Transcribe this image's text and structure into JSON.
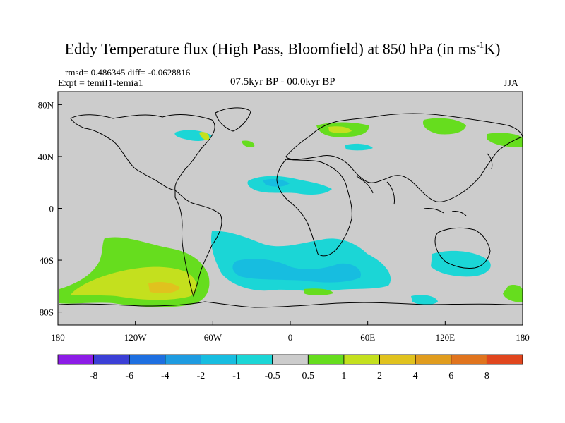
{
  "title": {
    "main": "Eddy Temperature flux (High Pass, Bloomfield) at 850 hPa (in ms",
    "sup": "-1",
    "suffix": "K)"
  },
  "stats": {
    "rmsd_diff": "rmsd= 0.486345 diff= -0.0628816",
    "expt": "Expt = temiI1-temia1"
  },
  "period": "07.5kyr BP - 00.0kyr BP",
  "season": "JJA",
  "axes": {
    "x_ticks": [
      "180",
      "120W",
      "60W",
      "0",
      "60E",
      "120E",
      "180"
    ],
    "y_ticks": [
      "80N",
      "40N",
      "0",
      "40S",
      "80S"
    ],
    "lon_range": [
      -180,
      180
    ],
    "lat_range": [
      -90,
      90
    ]
  },
  "colorbar": {
    "labels": [
      "-8",
      "-6",
      "-4",
      "-2",
      "-1",
      "-0.5",
      "0.5",
      "1",
      "2",
      "4",
      "6",
      "8"
    ],
    "colors": [
      "#8c1ce6",
      "#3b3fd6",
      "#1e6fe0",
      "#1e9be0",
      "#17bde0",
      "#1bd6d6",
      "#cccccc",
      "#66dd1e",
      "#c4e01e",
      "#e0c21e",
      "#e09c1e",
      "#e0741e",
      "#e0461e"
    ]
  },
  "map_colors": {
    "background": "#cccccc",
    "coast": "#000000"
  }
}
